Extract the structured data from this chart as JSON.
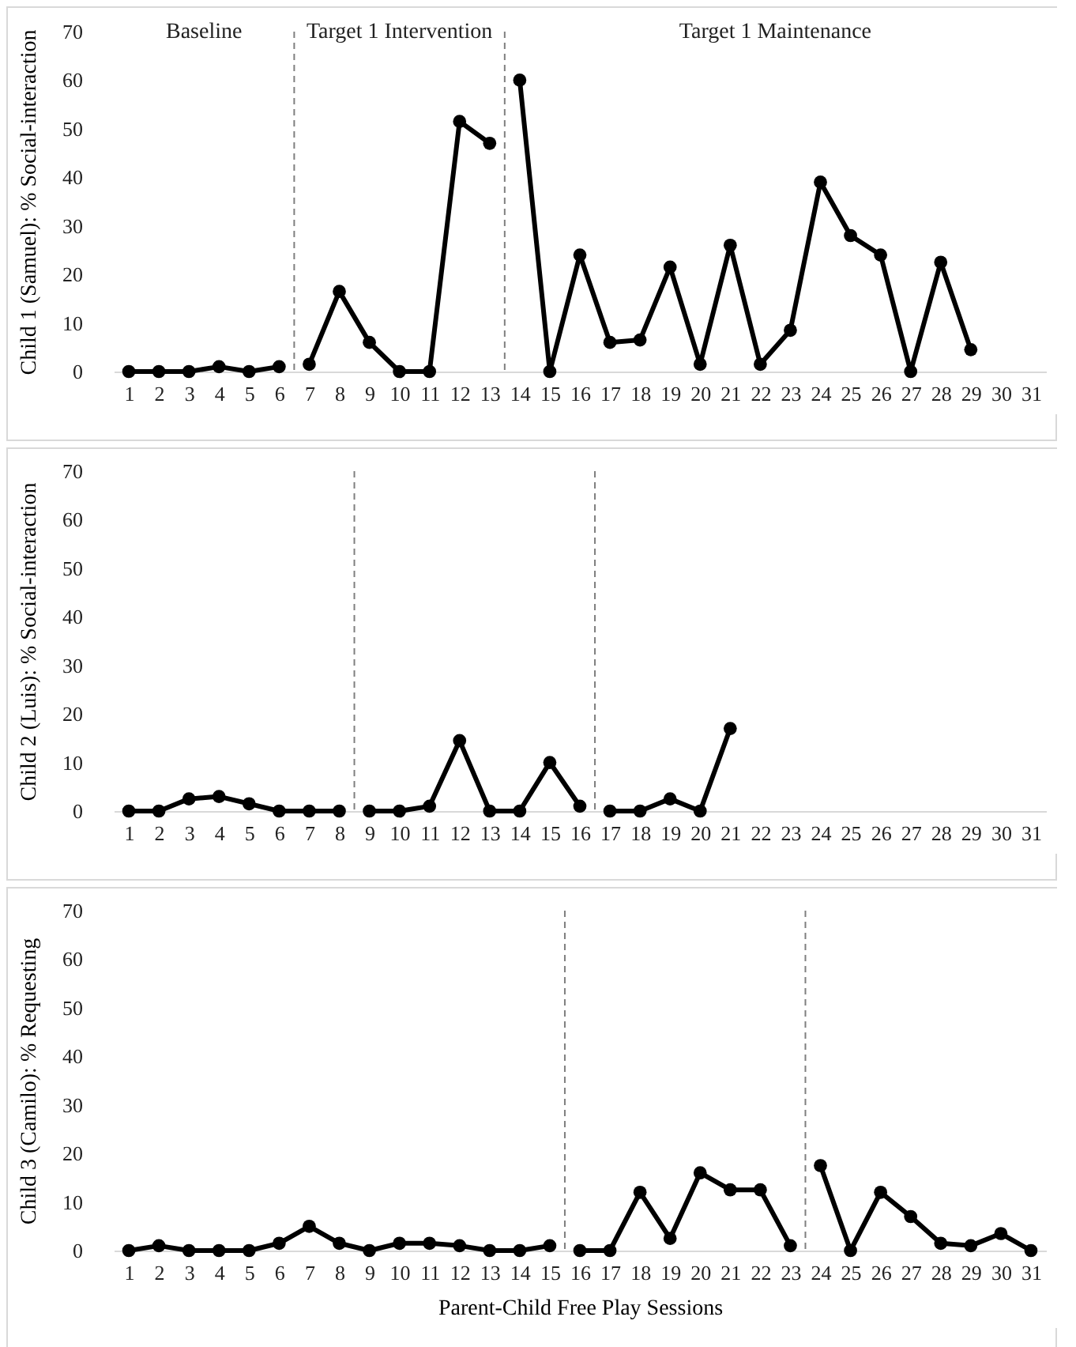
{
  "chart_data": [
    {
      "type": "line",
      "ylabel": "Child 1 (Samuel): % Social-interaction",
      "xlim": [
        0.5,
        31.5
      ],
      "xticks": [
        1,
        2,
        3,
        4,
        5,
        6,
        7,
        8,
        9,
        10,
        11,
        12,
        13,
        14,
        15,
        16,
        17,
        18,
        19,
        20,
        21,
        22,
        23,
        24,
        25,
        26,
        27,
        28,
        29,
        30,
        31
      ],
      "ylim": [
        0,
        70
      ],
      "yticks": [
        0,
        10,
        20,
        30,
        40,
        50,
        60,
        70
      ],
      "grid": false,
      "legend": false,
      "marker": "circle",
      "line_style": "solid",
      "series": [
        {
          "color": "#000000",
          "x": [
            1,
            2,
            3,
            4,
            5,
            6
          ],
          "values": [
            0,
            0,
            0,
            1,
            0,
            1
          ]
        },
        {
          "color": "#000000",
          "x": [
            7,
            8,
            9,
            10,
            11,
            12,
            13
          ],
          "values": [
            1.5,
            16.5,
            6,
            0,
            0,
            51.5,
            47
          ]
        },
        {
          "color": "#000000",
          "x": [
            14,
            15,
            16,
            17,
            18,
            19,
            20,
            21,
            22,
            23,
            24,
            25,
            26,
            27,
            28,
            29
          ],
          "values": [
            60,
            0,
            24,
            6,
            6.5,
            21.5,
            1.5,
            26,
            1.5,
            8.5,
            39,
            28,
            24,
            0,
            22.5,
            4.5
          ]
        }
      ],
      "ref_lines": [
        {
          "axis": "x",
          "value": 6.5,
          "color": "#7f7f7f",
          "line_style": "dashed"
        },
        {
          "axis": "x",
          "value": 13.5,
          "color": "#7f7f7f",
          "line_style": "dashed"
        }
      ],
      "annotations": [
        "Baseline",
        "Target 1 Intervention",
        "Target 1 Maintenance"
      ]
    },
    {
      "type": "line",
      "ylabel": "Child 2 (Luis): % Social-interaction",
      "xlim": [
        0.5,
        31.5
      ],
      "xticks": [
        1,
        2,
        3,
        4,
        5,
        6,
        7,
        8,
        9,
        10,
        11,
        12,
        13,
        14,
        15,
        16,
        17,
        18,
        19,
        20,
        21,
        22,
        23,
        24,
        25,
        26,
        27,
        28,
        29,
        30,
        31
      ],
      "ylim": [
        0,
        70
      ],
      "yticks": [
        0,
        10,
        20,
        30,
        40,
        50,
        60,
        70
      ],
      "grid": false,
      "legend": false,
      "marker": "circle",
      "line_style": "solid",
      "series": [
        {
          "color": "#000000",
          "x": [
            1,
            2,
            3,
            4,
            5,
            6,
            7,
            8
          ],
          "values": [
            0,
            0,
            2.5,
            3,
            1.5,
            0,
            0,
            0
          ]
        },
        {
          "color": "#000000",
          "x": [
            9,
            10,
            11,
            12,
            13,
            14,
            15,
            16
          ],
          "values": [
            0,
            0,
            1,
            14.5,
            0,
            0,
            10,
            1
          ]
        },
        {
          "color": "#000000",
          "x": [
            17,
            18,
            19,
            20,
            21
          ],
          "values": [
            0,
            0,
            2.5,
            0,
            17
          ]
        }
      ],
      "ref_lines": [
        {
          "axis": "x",
          "value": 8.5,
          "color": "#7f7f7f",
          "line_style": "dashed"
        },
        {
          "axis": "x",
          "value": 16.5,
          "color": "#7f7f7f",
          "line_style": "dashed"
        }
      ]
    },
    {
      "type": "line",
      "ylabel": "Child 3 (Camilo): % Requesting",
      "xlabel": "Parent-Child Free Play Sessions",
      "xlim": [
        0.5,
        31.5
      ],
      "xticks": [
        1,
        2,
        3,
        4,
        5,
        6,
        7,
        8,
        9,
        10,
        11,
        12,
        13,
        14,
        15,
        16,
        17,
        18,
        19,
        20,
        21,
        22,
        23,
        24,
        25,
        26,
        27,
        28,
        29,
        30,
        31
      ],
      "ylim": [
        0,
        70
      ],
      "yticks": [
        0,
        10,
        20,
        30,
        40,
        50,
        60,
        70
      ],
      "grid": false,
      "legend": false,
      "marker": "circle",
      "line_style": "solid",
      "series": [
        {
          "color": "#000000",
          "x": [
            1,
            2,
            3,
            4,
            5,
            6,
            7,
            8,
            9,
            10,
            11,
            12,
            13,
            14,
            15
          ],
          "values": [
            0,
            1,
            0,
            0,
            0,
            1.5,
            5,
            1.5,
            0,
            1.5,
            1.5,
            1,
            0,
            0,
            1
          ]
        },
        {
          "color": "#000000",
          "x": [
            16,
            17,
            18,
            19,
            20,
            21,
            22,
            23
          ],
          "values": [
            0,
            0,
            12,
            2.5,
            16,
            12.5,
            12.5,
            1
          ]
        },
        {
          "color": "#000000",
          "x": [
            24,
            25,
            26,
            27,
            28,
            29,
            30,
            31
          ],
          "values": [
            17.5,
            0,
            12,
            7,
            1.5,
            1,
            3.5,
            0
          ]
        }
      ],
      "ref_lines": [
        {
          "axis": "x",
          "value": 15.5,
          "color": "#7f7f7f",
          "line_style": "dashed"
        },
        {
          "axis": "x",
          "value": 23.5,
          "color": "#7f7f7f",
          "line_style": "dashed"
        }
      ]
    }
  ]
}
